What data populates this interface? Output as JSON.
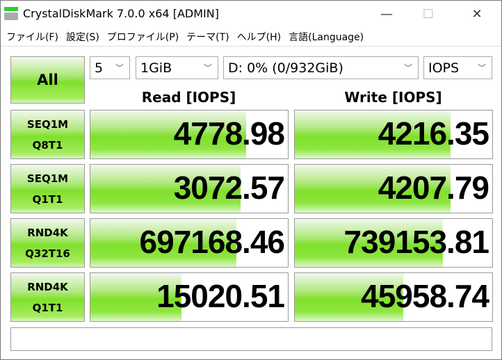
{
  "window": {
    "title": "CrystalDiskMark 7.0.0 x64 [ADMIN]",
    "minimize": "—",
    "maximize": "☐",
    "close": "✕"
  },
  "menu": [
    "ファイル(F)",
    "設定(S)",
    "プロファイル(P)",
    "テーマ(T)",
    "ヘルプ(H)",
    "言語(Language)"
  ],
  "controls": {
    "all_label": "All",
    "count": "5",
    "size": "1GiB",
    "drive": "D: 0% (0/932GiB)",
    "unit": "IOPS"
  },
  "headers": {
    "read": "Read [IOPS]",
    "write": "Write [IOPS]"
  },
  "tests": [
    {
      "line1": "SEQ1M",
      "line2": "Q8T1",
      "read": "4778.98",
      "write": "4216.35",
      "read_fill": 0.79,
      "write_fill": 0.79
    },
    {
      "line1": "SEQ1M",
      "line2": "Q1T1",
      "read": "3072.57",
      "write": "4207.79",
      "read_fill": 0.76,
      "write_fill": 0.79
    },
    {
      "line1": "RND4K",
      "line2": "Q32T16",
      "read": "697168.46",
      "write": "739153.81",
      "read_fill": 0.74,
      "write_fill": 0.75
    },
    {
      "line1": "RND4K",
      "line2": "Q1T1",
      "read": "15020.51",
      "write": "45958.74",
      "read_fill": 0.46,
      "write_fill": 0.55
    }
  ],
  "status": ""
}
